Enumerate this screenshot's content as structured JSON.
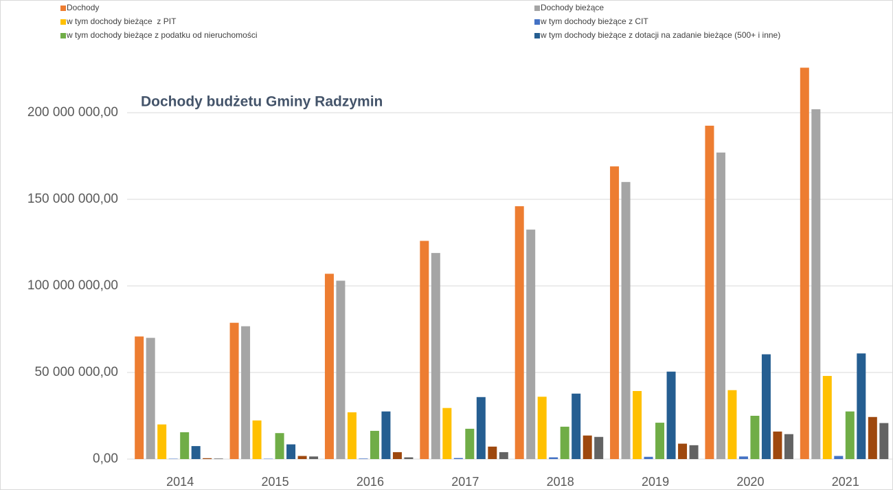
{
  "chart_data": {
    "type": "bar",
    "title": "Dochody budżetu Gminy Radzymin",
    "categories": [
      "2014",
      "2015",
      "2016",
      "2017",
      "2018",
      "2019",
      "2020",
      "2021"
    ],
    "series": [
      {
        "name": "Dochody",
        "color": "#ed7d31",
        "values": [
          70800000,
          78700000,
          107000000,
          126000000,
          146000000,
          169000000,
          192500000,
          226000000
        ]
      },
      {
        "name": "Dochody bieżące",
        "color": "#a5a5a5",
        "values": [
          70000000,
          76700000,
          103000000,
          119000000,
          132500000,
          160000000,
          177000000,
          202000000
        ]
      },
      {
        "name": "w tym dochody bieżące  z PIT",
        "color": "#ffc000",
        "values": [
          20000000,
          22300000,
          27000000,
          29500000,
          36000000,
          39300000,
          39800000,
          48000000
        ]
      },
      {
        "name": "w tym dochody bieżące z CIT",
        "color": "#4472c4",
        "values": [
          200000,
          200000,
          300000,
          600000,
          1000000,
          1300000,
          1500000,
          1800000
        ]
      },
      {
        "name": "w tym dochody bieżące z podatku od nieruchomości",
        "color": "#70ad47",
        "values": [
          15500000,
          15000000,
          16300000,
          17500000,
          18700000,
          21000000,
          25000000,
          27500000
        ]
      },
      {
        "name": "w tym dochody bieżące z dotacji na zadanie bieżące (500+ i inne)",
        "color": "#255e91",
        "values": [
          7500000,
          8500000,
          27500000,
          35800000,
          37800000,
          50500000,
          60500000,
          61000000
        ]
      },
      {
        "color": "#9e480e",
        "values": [
          500000,
          1800000,
          4000000,
          7200000,
          13600000,
          8900000,
          15900000,
          24300000
        ]
      },
      {
        "color": "#636363",
        "values": [
          300000,
          1500000,
          1000000,
          4000000,
          12800000,
          8000000,
          14400000,
          20800000
        ]
      }
    ],
    "ylim": [
      0,
      240000000
    ],
    "yticks": [
      {
        "value": 0,
        "label": "0,00"
      },
      {
        "value": 50000000,
        "label": "50 000 000,00"
      },
      {
        "value": 100000000,
        "label": "100 000 000,00"
      },
      {
        "value": 150000000,
        "label": "150 000 000,00"
      },
      {
        "value": 200000000,
        "label": "200 000 000,00"
      }
    ],
    "grid": true,
    "legend": "top"
  }
}
